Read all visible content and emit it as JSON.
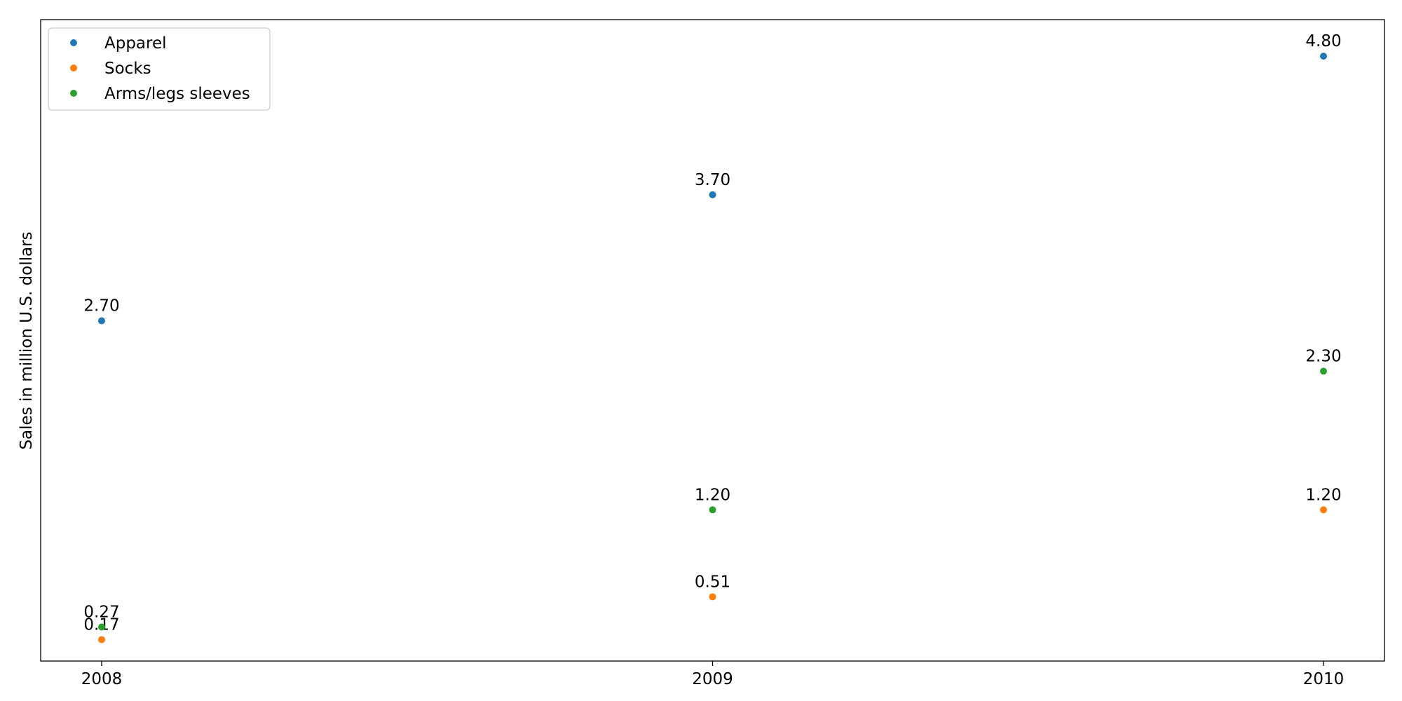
{
  "chart_data": {
    "type": "scatter",
    "title": "",
    "xlabel": "",
    "ylabel": "Sales in million U.S. dollars",
    "x": [
      "2008",
      "2009",
      "2010"
    ],
    "ylim": [
      0.0,
      5.09
    ],
    "grid": false,
    "legend_position": "top-left",
    "series": [
      {
        "name": "Apparel",
        "color": "#1f77b4",
        "values": [
          2.7,
          3.7,
          4.8
        ],
        "labels": [
          "2.70",
          "3.70",
          "4.80"
        ]
      },
      {
        "name": "Socks",
        "color": "#ff7f0e",
        "values": [
          0.17,
          0.51,
          1.2
        ],
        "labels": [
          "0.17",
          "0.51",
          "1.20"
        ]
      },
      {
        "name": "Arms/legs sleeves",
        "color": "#2ca02c",
        "values": [
          0.27,
          1.2,
          2.3
        ],
        "labels": [
          "0.27",
          "1.20",
          "2.30"
        ]
      }
    ]
  }
}
